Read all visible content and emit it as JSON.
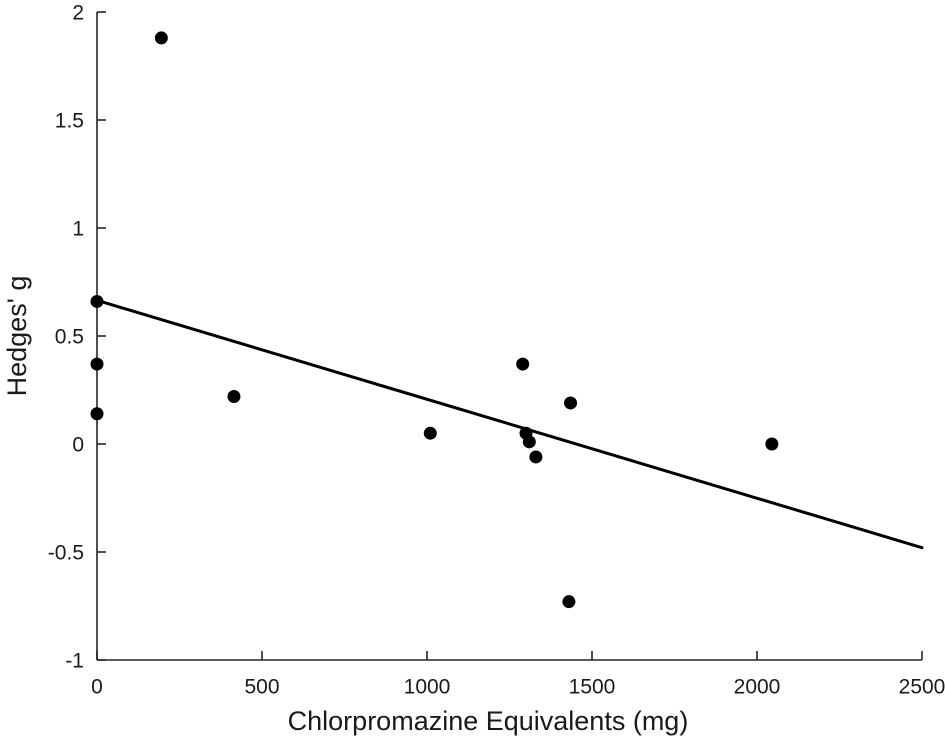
{
  "chart_data": {
    "type": "scatter",
    "title": "",
    "xlabel": "Chlorpromazine Equivalents (mg)",
    "ylabel": "Hedges' g",
    "xlim": [
      0,
      2500
    ],
    "ylim": [
      -1,
      2
    ],
    "grid": false,
    "legend": null,
    "x_ticks": [
      {
        "value": 0,
        "label": "0"
      },
      {
        "value": 500,
        "label": "500"
      },
      {
        "value": 1000,
        "label": "1000"
      },
      {
        "value": 1500,
        "label": "1500"
      },
      {
        "value": 2000,
        "label": "2000"
      },
      {
        "value": 2500,
        "label": "2500"
      }
    ],
    "y_ticks": [
      {
        "value": -1,
        "label": "-1"
      },
      {
        "value": -0.5,
        "label": "-0.5"
      },
      {
        "value": 0,
        "label": "0"
      },
      {
        "value": 0.5,
        "label": "0.5"
      },
      {
        "value": 1,
        "label": "1"
      },
      {
        "value": 1.5,
        "label": "1.5"
      },
      {
        "value": 2,
        "label": "2"
      }
    ],
    "points": [
      {
        "x": 0,
        "y": 0.66
      },
      {
        "x": 0,
        "y": 0.37
      },
      {
        "x": 0,
        "y": 0.14
      },
      {
        "x": 195,
        "y": 1.88
      },
      {
        "x": 415,
        "y": 0.22
      },
      {
        "x": 1010,
        "y": 0.05
      },
      {
        "x": 1290,
        "y": 0.37
      },
      {
        "x": 1300,
        "y": 0.05
      },
      {
        "x": 1310,
        "y": 0.01
      },
      {
        "x": 1330,
        "y": -0.06
      },
      {
        "x": 1435,
        "y": 0.19
      },
      {
        "x": 1430,
        "y": -0.73
      },
      {
        "x": 2045,
        "y": 0.0
      }
    ],
    "regression_line": {
      "x1": 0,
      "y1": 0.665,
      "x2": 2500,
      "y2": -0.48
    },
    "colors": {
      "marker": "#000000",
      "regression_line": "#000000",
      "axis": "#262626",
      "background": "#ffffff"
    }
  }
}
